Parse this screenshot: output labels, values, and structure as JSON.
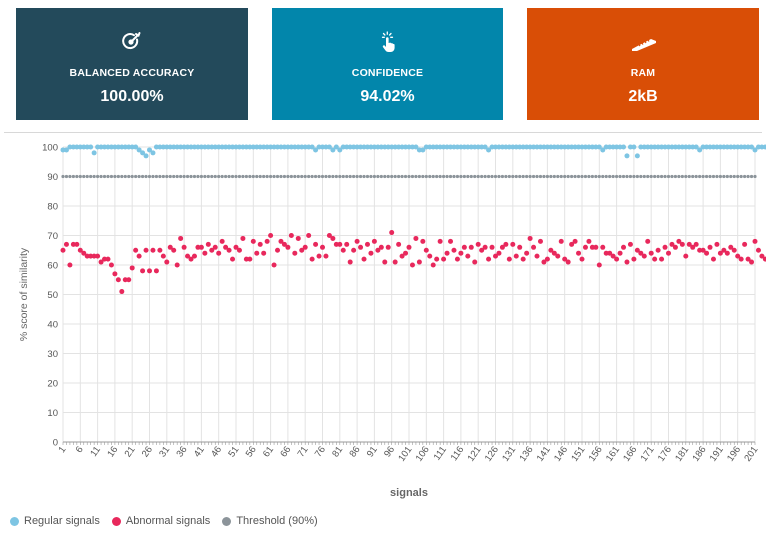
{
  "cards": [
    {
      "label": "BALANCED ACCURACY",
      "value": "100.00%",
      "color": "#234a5b",
      "icon": "target-check-icon"
    },
    {
      "label": "CONFIDENCE",
      "value": "94.02%",
      "color": "#0286ab",
      "icon": "tap-hand-icon"
    },
    {
      "label": "RAM",
      "value": "2kB",
      "color": "#d94e06",
      "icon": "memory-chip-icon"
    }
  ],
  "legend": [
    {
      "label": "Regular signals",
      "color": "#7ec5e3"
    },
    {
      "label": "Abnormal signals",
      "color": "#e8285c"
    },
    {
      "label": "Threshold (90%)",
      "color": "#8c949a"
    }
  ],
  "chart_data": {
    "type": "scatter",
    "xlabel": "signals",
    "ylabel": "% score of similarity",
    "ylim": [
      0,
      100
    ],
    "yticks": [
      0,
      10,
      20,
      30,
      40,
      50,
      60,
      70,
      80,
      90,
      100
    ],
    "xlim": [
      1,
      201
    ],
    "xticks": [
      1,
      6,
      11,
      16,
      21,
      26,
      31,
      36,
      41,
      46,
      51,
      56,
      61,
      66,
      71,
      76,
      81,
      86,
      91,
      96,
      101,
      106,
      111,
      116,
      121,
      126,
      131,
      136,
      141,
      146,
      151,
      156,
      161,
      166,
      171,
      176,
      181,
      186,
      191,
      196,
      201
    ],
    "grid": true,
    "legend_position": "bottom-left",
    "series": [
      {
        "name": "Regular signals",
        "color": "#7ec5e3",
        "x_start": 1,
        "values": [
          99,
          99,
          100,
          100,
          100,
          100,
          100,
          100,
          100,
          98,
          100,
          100,
          100,
          100,
          100,
          100,
          100,
          100,
          100,
          100,
          100,
          100,
          99,
          98,
          97,
          99,
          98,
          100,
          100,
          100,
          100,
          100,
          100,
          100,
          100,
          100,
          100,
          100,
          100,
          100,
          100,
          100,
          100,
          100,
          100,
          100,
          100,
          100,
          100,
          100,
          100,
          100,
          100,
          100,
          100,
          100,
          100,
          100,
          100,
          100,
          100,
          100,
          100,
          100,
          100,
          100,
          100,
          100,
          100,
          100,
          100,
          100,
          100,
          99,
          100,
          100,
          100,
          100,
          99,
          100,
          99,
          100,
          100,
          100,
          100,
          100,
          100,
          100,
          100,
          100,
          100,
          100,
          100,
          100,
          100,
          100,
          100,
          100,
          100,
          100,
          100,
          100,
          100,
          99,
          99,
          100,
          100,
          100,
          100,
          100,
          100,
          100,
          100,
          100,
          100,
          100,
          100,
          100,
          100,
          100,
          100,
          100,
          100,
          99,
          100,
          100,
          100,
          100,
          100,
          100,
          100,
          100,
          100,
          100,
          100,
          100,
          100,
          100,
          100,
          100,
          100,
          100,
          100,
          100,
          100,
          100,
          100,
          100,
          100,
          100,
          100,
          100,
          100,
          100,
          100,
          100,
          99,
          100,
          100,
          100,
          100,
          100,
          100,
          97,
          100,
          100,
          97,
          100,
          100,
          100,
          100,
          100,
          100,
          100,
          100,
          100,
          100,
          100,
          100,
          100,
          100,
          100,
          100,
          100,
          99,
          100,
          100,
          100,
          100,
          100,
          100,
          100,
          100,
          100,
          100,
          100,
          100,
          100,
          100,
          100,
          99,
          100,
          100,
          100,
          100,
          100
        ]
      },
      {
        "name": "Abnormal signals",
        "color": "#e8285c",
        "x_start": 1,
        "values": [
          65,
          67,
          60,
          67,
          67,
          65,
          64,
          63,
          63,
          63,
          63,
          61,
          62,
          62,
          60,
          57,
          55,
          51,
          55,
          55,
          59,
          65,
          63,
          58,
          65,
          58,
          65,
          58,
          65,
          63,
          61,
          66,
          65,
          60,
          69,
          66,
          63,
          62,
          63,
          66,
          66,
          64,
          67,
          65,
          66,
          64,
          68,
          66,
          65,
          62,
          66,
          65,
          69,
          62,
          62,
          68,
          64,
          67,
          64,
          68,
          70,
          60,
          65,
          68,
          67,
          66,
          70,
          64,
          69,
          65,
          66,
          70,
          62,
          67,
          63,
          66,
          63,
          70,
          69,
          67,
          67,
          65,
          67,
          61,
          65,
          68,
          66,
          62,
          67,
          64,
          68,
          65,
          66,
          61,
          66,
          71,
          61,
          67,
          63,
          64,
          66,
          60,
          69,
          61,
          68,
          65,
          63,
          60,
          62,
          68,
          62,
          64,
          68,
          65,
          62,
          64,
          66,
          63,
          66,
          61,
          67,
          65,
          66,
          62,
          66,
          63,
          64,
          66,
          67,
          62,
          67,
          63,
          66,
          62,
          64,
          69,
          66,
          63,
          68,
          61,
          62,
          65,
          64,
          63,
          68,
          62,
          61,
          67,
          68,
          64,
          62,
          66,
          68,
          66,
          66,
          60,
          66,
          64,
          64,
          63,
          62,
          64,
          66,
          61,
          67,
          62,
          65,
          64,
          63,
          68,
          64,
          62,
          65,
          62,
          66,
          64,
          67,
          66,
          68,
          67,
          63,
          67,
          66,
          67,
          65,
          65,
          64,
          66,
          62,
          67,
          64,
          65,
          64,
          66,
          65,
          63,
          62,
          67,
          62,
          61,
          68,
          65,
          63,
          62,
          64,
          66,
          66
        ]
      },
      {
        "name": "Threshold (90%)",
        "color": "#8c949a",
        "x_start": 1,
        "constant": 90,
        "count": 201
      }
    ]
  }
}
